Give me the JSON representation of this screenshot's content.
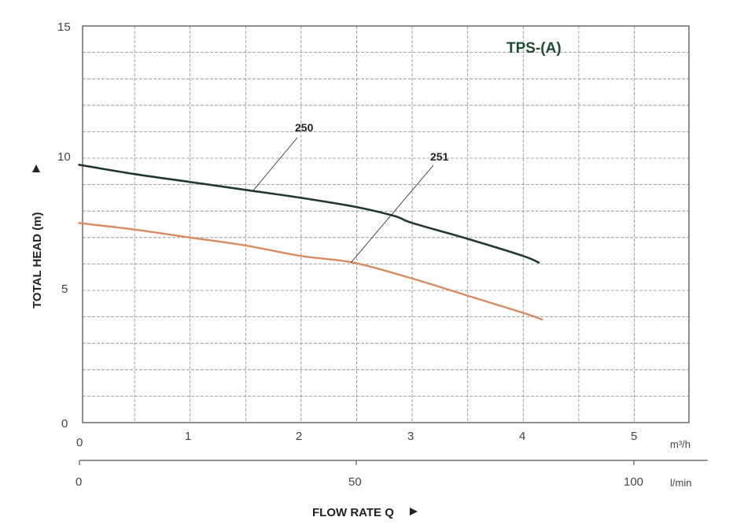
{
  "chart_data": {
    "type": "line",
    "title": "TPS-(A)",
    "xlabel": "FLOW RATE Q",
    "ylabel": "TOTAL HEAD (m)",
    "x_unit_primary": "m³/h",
    "x_unit_secondary": "l/min",
    "xlim": [
      0,
      5.5
    ],
    "ylim": [
      0,
      15
    ],
    "grid": true,
    "x_ticks": [
      "0",
      "1",
      "2",
      "3",
      "4",
      "5"
    ],
    "x_ticks_secondary": [
      "0",
      "50",
      "100"
    ],
    "y_ticks": [
      "0",
      "5",
      "10",
      "15"
    ],
    "series": [
      {
        "name": "250",
        "color": "#1f3a2a",
        "x": [
          0,
          0.5,
          1,
          1.5,
          2,
          2.5,
          2.85,
          3,
          3.5,
          4,
          4.14
        ],
        "values": [
          9.75,
          9.4,
          9.1,
          8.8,
          8.5,
          8.15,
          7.8,
          7.55,
          6.95,
          6.3,
          6.05
        ]
      },
      {
        "name": "251",
        "color": "#d98a5f",
        "x": [
          0,
          0.5,
          1,
          1.5,
          2,
          2.47,
          3,
          3.5,
          4,
          4.17
        ],
        "values": [
          7.55,
          7.3,
          7.0,
          6.7,
          6.3,
          6.05,
          5.45,
          4.8,
          4.15,
          3.9
        ]
      }
    ]
  },
  "labels": {
    "title": "TPS-(A)",
    "ylabel": "TOTAL HEAD (m)",
    "xlabel": "FLOW RATE Q",
    "unit_m3h": "m³/h",
    "unit_lmin": "l/min",
    "series_250": "250",
    "series_251": "251",
    "y_ticks": [
      "0",
      "5",
      "10",
      "15"
    ],
    "x_ticks": [
      "0",
      "1",
      "2",
      "3",
      "4",
      "5"
    ],
    "x2_ticks": [
      "0",
      "50",
      "100"
    ]
  },
  "colors": {
    "title": "#1e4d32",
    "curve_250": "#1f3a2a",
    "curve_251": "#d98a5f",
    "grid": "#8a8a8a",
    "frame": "#555555"
  }
}
